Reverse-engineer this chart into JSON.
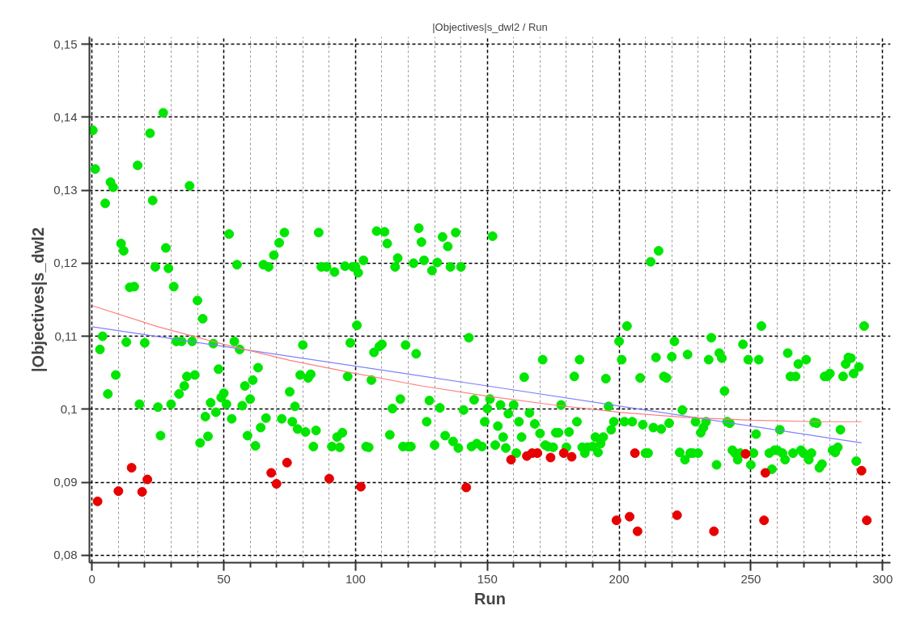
{
  "chart_data": {
    "type": "scatter",
    "title": "|Objectives|s_dwl2 / Run",
    "xlabel": "Run",
    "ylabel": "|Objectives|s_dwl2",
    "xlim": [
      -1,
      303
    ],
    "ylim": [
      0.079,
      0.151
    ],
    "xticks": [
      0,
      {
        "value": 10,
        "label": null
      },
      {
        "value": 20,
        "label": null
      },
      {
        "value": 30,
        "label": null
      },
      {
        "value": 40,
        "label": null
      },
      50,
      {
        "value": 60,
        "label": null
      },
      {
        "value": 70,
        "label": null
      },
      {
        "value": 80,
        "label": null
      },
      {
        "value": 90,
        "label": null
      },
      100,
      {
        "value": 110,
        "label": null
      },
      {
        "value": 120,
        "label": null
      },
      {
        "value": 130,
        "label": null
      },
      {
        "value": 140,
        "label": null
      },
      150,
      {
        "value": 160,
        "label": null
      },
      {
        "value": 170,
        "label": null
      },
      {
        "value": 180,
        "label": null
      },
      {
        "value": 190,
        "label": null
      },
      200,
      {
        "value": 210,
        "label": null
      },
      {
        "value": 220,
        "label": null
      },
      {
        "value": 230,
        "label": null
      },
      {
        "value": 240,
        "label": null
      },
      250,
      {
        "value": 260,
        "label": null
      },
      {
        "value": 270,
        "label": null
      },
      {
        "value": 280,
        "label": null
      },
      {
        "value": 290,
        "label": null
      },
      300
    ],
    "yticks": [
      {
        "value": 0.08,
        "label": "0,08"
      },
      {
        "value": 0.09,
        "label": "0,09"
      },
      {
        "value": 0.1,
        "label": "0,1"
      },
      {
        "value": 0.11,
        "label": "0,11"
      },
      {
        "value": 0.12,
        "label": "0,12"
      },
      {
        "value": 0.13,
        "label": "0,13"
      },
      {
        "value": 0.14,
        "label": "0,14"
      },
      {
        "value": 0.15,
        "label": "0,15"
      }
    ],
    "grid": true,
    "series": [
      {
        "marker": "circle",
        "color": "#00e600",
        "x": [
          0.3,
          1.2,
          7,
          8,
          5,
          17.3,
          22,
          27,
          23,
          37,
          11,
          12,
          28,
          24,
          29,
          16,
          14.3,
          31,
          40,
          52,
          55,
          65,
          67,
          69,
          71,
          73,
          86,
          87,
          89,
          92,
          96,
          99,
          100,
          101,
          103,
          108,
          111,
          112,
          115,
          116,
          122,
          124,
          125,
          126,
          129,
          131,
          133,
          135,
          136,
          138,
          140,
          152,
          212,
          215,
          4,
          3,
          13,
          20,
          32,
          34,
          38,
          42,
          46,
          54,
          56,
          80,
          98,
          100.5,
          9,
          6,
          18,
          25,
          30,
          26,
          33,
          35,
          36,
          39,
          41,
          43,
          44,
          45,
          47,
          48,
          49,
          50,
          51,
          53,
          57,
          58,
          59,
          60,
          61,
          62,
          63,
          64,
          66,
          72,
          75,
          76,
          77,
          78,
          79,
          81,
          82,
          83,
          84,
          85,
          91,
          93,
          94,
          95,
          97,
          106,
          104,
          105,
          107,
          109,
          110,
          113,
          114,
          117,
          118,
          119,
          120,
          121,
          123,
          127,
          128,
          130,
          132,
          134,
          137,
          139,
          141,
          143,
          144,
          145,
          146,
          148,
          149,
          150,
          151,
          153,
          154,
          155,
          156,
          157,
          158,
          160,
          161,
          162,
          163,
          164,
          166,
          168,
          170,
          171,
          172,
          173,
          175,
          176,
          177,
          178,
          180,
          181,
          183,
          184,
          185,
          186,
          187,
          188,
          190,
          191,
          192,
          193,
          194,
          195,
          196,
          197,
          198,
          200,
          201,
          202,
          203,
          205,
          208,
          209,
          210,
          211,
          213,
          214,
          216,
          217,
          218,
          219,
          220,
          221,
          223,
          224,
          225,
          226,
          227,
          228,
          230,
          229,
          231,
          232,
          233,
          234,
          235,
          237,
          238,
          239,
          240,
          241,
          242,
          243,
          244,
          245,
          246,
          247,
          249,
          250,
          251,
          252,
          253,
          254,
          257,
          258,
          259,
          260,
          261,
          262,
          263,
          264,
          265,
          267,
          266,
          268,
          269,
          270,
          271,
          272,
          273,
          274,
          275,
          276,
          277,
          278,
          280,
          279,
          281,
          282,
          283,
          284,
          285,
          286,
          287,
          288,
          289,
          290,
          291,
          293
        ],
        "values": [
          0.1382,
          0.1329,
          0.1311,
          0.1304,
          0.1282,
          0.1334,
          0.1378,
          0.1406,
          0.1286,
          0.1306,
          0.1227,
          0.1217,
          0.1221,
          0.1195,
          0.1193,
          0.1168,
          0.1167,
          0.1168,
          0.1149,
          0.124,
          0.1198,
          0.1198,
          0.1195,
          0.1211,
          0.1228,
          0.1242,
          0.1242,
          0.1195,
          0.1195,
          0.1188,
          0.1196,
          0.1195,
          0.1195,
          0.1187,
          0.1204,
          0.1244,
          0.1243,
          0.1227,
          0.1195,
          0.1207,
          0.12,
          0.1248,
          0.1229,
          0.1204,
          0.119,
          0.1201,
          0.1236,
          0.1223,
          0.1195,
          0.1242,
          0.1195,
          0.1237,
          0.1202,
          0.1217,
          0.11,
          0.1082,
          0.1092,
          0.1091,
          0.1093,
          0.1093,
          0.1093,
          0.1124,
          0.109,
          0.1093,
          0.1082,
          0.1088,
          0.1091,
          0.1115,
          0.1047,
          0.1021,
          0.1007,
          0.1003,
          0.1007,
          0.0964,
          0.1021,
          0.1032,
          0.1045,
          0.1047,
          0.0954,
          0.099,
          0.0963,
          0.1009,
          0.0996,
          0.1055,
          0.1016,
          0.1022,
          0.1007,
          0.0987,
          0.1005,
          0.1032,
          0.0964,
          0.1014,
          0.104,
          0.095,
          0.1057,
          0.0975,
          0.0988,
          0.0987,
          0.1024,
          0.0983,
          0.1004,
          0.0973,
          0.1047,
          0.0969,
          0.1043,
          0.1048,
          0.0949,
          0.0971,
          0.0949,
          0.0962,
          0.0948,
          0.0968,
          0.1045,
          0.104,
          0.0949,
          0.0948,
          0.1078,
          0.1086,
          0.1089,
          0.0965,
          0.1001,
          0.1014,
          0.0949,
          0.1088,
          0.0949,
          0.0949,
          0.1076,
          0.0983,
          0.1012,
          0.0951,
          0.1002,
          0.0964,
          0.0956,
          0.0947,
          0.0999,
          0.1098,
          0.0949,
          0.1013,
          0.0953,
          0.0949,
          0.0983,
          0.1001,
          0.1014,
          0.0951,
          0.0977,
          0.1006,
          0.0962,
          0.0947,
          0.0994,
          0.1006,
          0.094,
          0.0983,
          0.0962,
          0.1044,
          0.0995,
          0.098,
          0.0967,
          0.1068,
          0.0951,
          0.0949,
          0.0948,
          0.0968,
          0.0968,
          0.1006,
          0.0948,
          0.0969,
          0.1045,
          0.0983,
          0.1068,
          0.0948,
          0.094,
          0.0948,
          0.0949,
          0.0962,
          0.0941,
          0.0953,
          0.0962,
          0.1042,
          0.1004,
          0.0972,
          0.0983,
          0.1093,
          0.1068,
          0.0983,
          0.1114,
          0.0983,
          0.1043,
          0.0979,
          0.094,
          0.094,
          0.0975,
          0.1071,
          0.0973,
          0.1045,
          0.1043,
          0.0981,
          0.1072,
          0.1093,
          0.0941,
          0.0999,
          0.0931,
          0.1075,
          0.094,
          0.094,
          0.094,
          0.0983,
          0.0968,
          0.0975,
          0.0983,
          0.1068,
          0.1098,
          0.0924,
          0.1077,
          0.107,
          0.1025,
          0.0983,
          0.0981,
          0.0944,
          0.094,
          0.0931,
          0.094,
          0.1089,
          0.1068,
          0.0924,
          0.094,
          0.0966,
          0.1068,
          0.1114,
          0.094,
          0.0918,
          0.0944,
          0.0944,
          0.0972,
          0.094,
          0.0931,
          0.1077,
          0.1045,
          0.1045,
          0.094,
          0.1062,
          0.0944,
          0.094,
          0.1068,
          0.0931,
          0.094,
          0.0982,
          0.0981,
          0.092,
          0.0925,
          0.1045,
          0.1049,
          0.1045,
          0.0944,
          0.0941,
          0.0948,
          0.0972,
          0.1045,
          0.1062,
          0.1071,
          0.107,
          0.1049,
          0.0929,
          0.1058,
          0.1114
        ]
      },
      {
        "marker": "circle",
        "color": "#e60000",
        "x": [
          2.1,
          10,
          15,
          19,
          21,
          68,
          70,
          74,
          90,
          102,
          142,
          159,
          165,
          167,
          169,
          174,
          179,
          182,
          199,
          204,
          206,
          207,
          222,
          236,
          248,
          255,
          255.5,
          292,
          294
        ],
        "values": [
          0.0874,
          0.0888,
          0.092,
          0.0887,
          0.0904,
          0.0913,
          0.0898,
          0.0927,
          0.0905,
          0.0894,
          0.0893,
          0.0931,
          0.0936,
          0.094,
          0.094,
          0.0934,
          0.094,
          0.0935,
          0.0848,
          0.0853,
          0.094,
          0.0833,
          0.0855,
          0.0833,
          0.0939,
          0.0848,
          0.0913,
          0.0916,
          0.0848
        ]
      },
      {
        "type": "line",
        "marker": "none",
        "color": "#7f7fff",
        "x": [
          0,
          150,
          292
        ],
        "values": [
          0.1113,
          0.1032,
          0.0954
        ]
      },
      {
        "type": "line",
        "marker": "none",
        "color": "#ff7f7f",
        "x": [
          0,
          25,
          50,
          75,
          100,
          125,
          150,
          175,
          200,
          225,
          250,
          275,
          292
        ],
        "values": [
          0.1142,
          0.1113,
          0.1089,
          0.1067,
          0.1049,
          0.1032,
          0.1018,
          0.1006,
          0.0996,
          0.0989,
          0.0985,
          0.0983,
          0.0983
        ]
      }
    ]
  }
}
